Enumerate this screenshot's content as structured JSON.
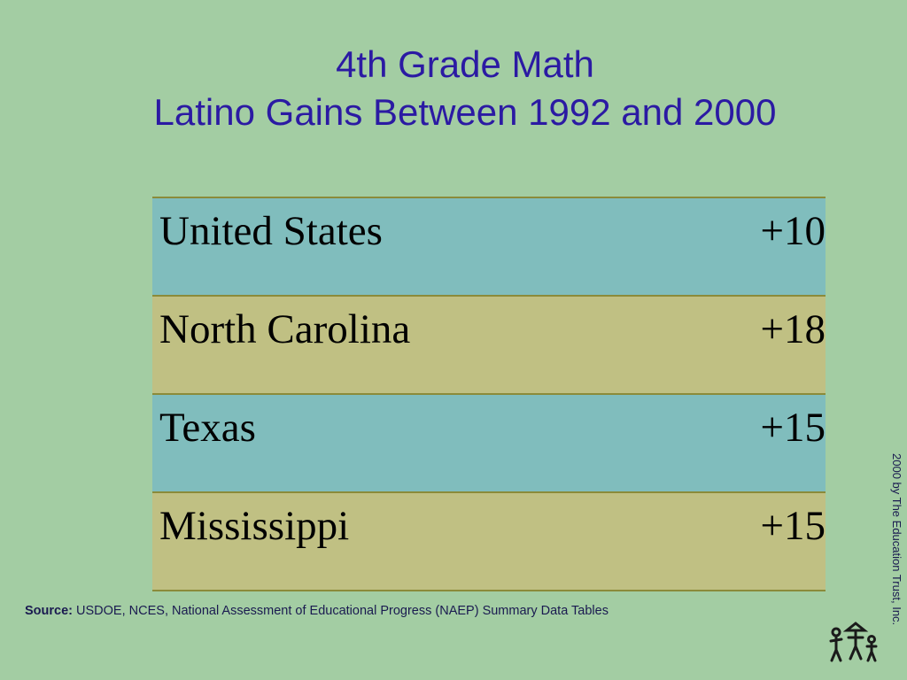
{
  "title": {
    "line1": "4th Grade Math",
    "line2": "Latino Gains Between 1992 and 2000"
  },
  "table": {
    "rows": [
      [
        "United States",
        "+10"
      ],
      [
        "North Carolina",
        "+18"
      ],
      [
        "Texas",
        "+15"
      ],
      [
        "Mississippi",
        "+15"
      ]
    ]
  },
  "source": {
    "label": "Source:",
    "text": "USDOE, NCES, National Assessment of Educational Progress (NAEP) Summary Data Tables"
  },
  "copyright": "2000 by The Education Trust, Inc."
}
